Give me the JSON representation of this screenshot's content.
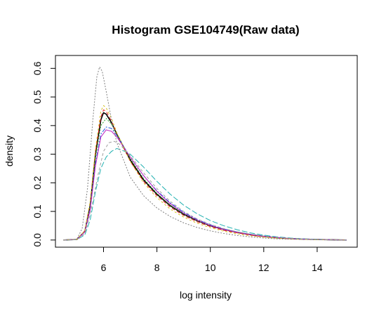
{
  "chart_data": {
    "type": "line",
    "title": "Histogram GSE104749(Raw data)",
    "xlabel": "log intensity",
    "ylabel": "density",
    "xlim": [
      4.2,
      15.5
    ],
    "ylim": [
      -0.025,
      0.645
    ],
    "x_ticks": [
      6,
      8,
      10,
      12,
      14
    ],
    "y_ticks": [
      0.0,
      0.1,
      0.2,
      0.3,
      0.4,
      0.5,
      0.6
    ],
    "x_tick_labels": [
      "6",
      "8",
      "10",
      "12",
      "14"
    ],
    "y_tick_labels": [
      "0.0",
      "0.1",
      "0.2",
      "0.3",
      "0.4",
      "0.5",
      "0.6"
    ],
    "grid": false,
    "legend": "none",
    "series": [
      {
        "color": "#000000",
        "dash": "solid",
        "x": [
          4.5,
          5.0,
          5.3,
          5.5,
          5.7,
          5.9,
          6.0,
          6.1,
          6.3,
          6.5,
          7.0,
          7.5,
          8.0,
          8.5,
          9.0,
          9.5,
          10.0,
          10.5,
          11.0,
          11.5,
          12.0,
          12.5,
          13.0,
          13.5,
          14.0,
          14.5,
          15.1
        ],
        "y": [
          0.0,
          0.002,
          0.03,
          0.12,
          0.3,
          0.42,
          0.445,
          0.44,
          0.41,
          0.37,
          0.28,
          0.21,
          0.16,
          0.12,
          0.09,
          0.068,
          0.05,
          0.037,
          0.027,
          0.019,
          0.013,
          0.008,
          0.005,
          0.003,
          0.002,
          0.001,
          0.0
        ]
      },
      {
        "color": "#e32020",
        "dash": "5,3",
        "x": [
          4.5,
          5.0,
          5.3,
          5.5,
          5.7,
          5.9,
          6.0,
          6.1,
          6.3,
          6.5,
          7.0,
          7.5,
          8.0,
          8.5,
          9.0,
          9.5,
          10.0,
          10.5,
          11.0,
          11.5,
          12.0,
          12.5,
          13.0,
          13.5,
          14.0,
          14.5,
          15.1
        ],
        "y": [
          0.0,
          0.002,
          0.032,
          0.13,
          0.31,
          0.43,
          0.455,
          0.45,
          0.415,
          0.37,
          0.275,
          0.205,
          0.155,
          0.115,
          0.086,
          0.064,
          0.047,
          0.034,
          0.025,
          0.017,
          0.011,
          0.007,
          0.004,
          0.003,
          0.002,
          0.001,
          0.0
        ]
      },
      {
        "color": "#22a022",
        "dash": "2,2",
        "x": [
          4.5,
          5.0,
          5.3,
          5.5,
          5.7,
          5.9,
          6.1,
          6.3,
          6.5,
          7.0,
          7.5,
          8.0,
          8.5,
          9.0,
          9.5,
          10.0,
          10.5,
          11.0,
          11.5,
          12.0,
          12.5,
          13.0,
          13.5,
          14.0,
          14.5,
          15.1
        ],
        "y": [
          0.0,
          0.002,
          0.03,
          0.12,
          0.29,
          0.4,
          0.425,
          0.405,
          0.37,
          0.285,
          0.215,
          0.163,
          0.122,
          0.091,
          0.068,
          0.05,
          0.037,
          0.027,
          0.019,
          0.013,
          0.008,
          0.005,
          0.003,
          0.002,
          0.001,
          0.0
        ]
      },
      {
        "color": "#2060e0",
        "dash": "6,2,2,2",
        "x": [
          4.5,
          5.0,
          5.3,
          5.5,
          5.7,
          5.9,
          6.1,
          6.3,
          6.5,
          7.0,
          7.5,
          8.0,
          8.5,
          9.0,
          9.5,
          10.0,
          10.5,
          11.0,
          11.5,
          12.0,
          12.5,
          13.0,
          13.5,
          14.0,
          14.5,
          15.1
        ],
        "y": [
          0.0,
          0.002,
          0.028,
          0.11,
          0.27,
          0.37,
          0.395,
          0.39,
          0.365,
          0.29,
          0.225,
          0.172,
          0.13,
          0.097,
          0.072,
          0.053,
          0.039,
          0.028,
          0.02,
          0.014,
          0.009,
          0.006,
          0.004,
          0.002,
          0.001,
          0.0
        ]
      },
      {
        "color": "#20b0b0",
        "dash": "8,3",
        "x": [
          4.5,
          5.0,
          5.3,
          5.5,
          5.7,
          5.9,
          6.1,
          6.3,
          6.5,
          6.8,
          7.0,
          7.5,
          8.0,
          8.5,
          9.0,
          9.5,
          10.0,
          10.5,
          11.0,
          11.5,
          12.0,
          12.5,
          13.0,
          13.5,
          14.0,
          14.5,
          15.1
        ],
        "y": [
          0.0,
          0.001,
          0.018,
          0.07,
          0.17,
          0.25,
          0.29,
          0.31,
          0.32,
          0.31,
          0.3,
          0.255,
          0.205,
          0.16,
          0.122,
          0.092,
          0.068,
          0.05,
          0.036,
          0.025,
          0.017,
          0.011,
          0.007,
          0.004,
          0.003,
          0.001,
          0.0
        ]
      },
      {
        "color": "#c020c0",
        "dash": "solid",
        "x": [
          4.5,
          5.0,
          5.3,
          5.5,
          5.7,
          5.9,
          6.1,
          6.3,
          6.5,
          7.0,
          7.5,
          8.0,
          8.5,
          9.0,
          9.5,
          10.0,
          10.5,
          11.0,
          11.5,
          12.0,
          12.5,
          13.0,
          13.5,
          14.0,
          14.5,
          15.1
        ],
        "y": [
          0.0,
          0.002,
          0.028,
          0.105,
          0.26,
          0.36,
          0.385,
          0.38,
          0.36,
          0.29,
          0.225,
          0.17,
          0.127,
          0.094,
          0.07,
          0.051,
          0.037,
          0.027,
          0.019,
          0.013,
          0.009,
          0.005,
          0.003,
          0.002,
          0.001,
          0.0
        ]
      },
      {
        "color": "#d4c020",
        "dash": "3,3",
        "x": [
          4.5,
          5.0,
          5.3,
          5.5,
          5.7,
          5.9,
          6.0,
          6.1,
          6.3,
          6.5,
          7.0,
          7.5,
          8.0,
          8.5,
          9.0,
          9.5,
          10.0,
          10.5,
          11.0,
          11.5,
          12.0,
          12.5,
          13.0,
          13.5,
          14.0,
          14.5,
          15.1
        ],
        "y": [
          0.0,
          0.002,
          0.033,
          0.135,
          0.32,
          0.45,
          0.47,
          0.462,
          0.425,
          0.375,
          0.275,
          0.2,
          0.148,
          0.108,
          0.08,
          0.059,
          0.043,
          0.031,
          0.022,
          0.015,
          0.01,
          0.006,
          0.004,
          0.002,
          0.001,
          0.001,
          0.0
        ]
      },
      {
        "color": "#808080",
        "dash": "2,2",
        "x": [
          4.5,
          5.0,
          5.2,
          5.4,
          5.6,
          5.75,
          5.85,
          5.95,
          6.1,
          6.3,
          6.5,
          7.0,
          7.5,
          8.0,
          8.5,
          9.0,
          9.5,
          10.0,
          10.5,
          11.0,
          11.5,
          12.0,
          12.5,
          13.0,
          13.5,
          14.0,
          14.5,
          15.1
        ],
        "y": [
          0.0,
          0.003,
          0.04,
          0.18,
          0.42,
          0.57,
          0.605,
          0.59,
          0.52,
          0.42,
          0.34,
          0.22,
          0.155,
          0.112,
          0.082,
          0.06,
          0.044,
          0.032,
          0.023,
          0.016,
          0.011,
          0.007,
          0.004,
          0.003,
          0.002,
          0.001,
          0.0,
          0.0
        ]
      },
      {
        "color": "#a0a0a0",
        "dash": "4,3",
        "x": [
          4.5,
          5.0,
          5.3,
          5.5,
          5.8,
          6.0,
          6.2,
          6.4,
          6.6,
          7.0,
          7.5,
          8.0,
          8.5,
          9.0,
          9.5,
          10.0,
          10.5,
          11.0,
          11.5,
          12.0,
          12.5,
          13.0,
          13.5,
          14.0,
          14.5,
          15.1
        ],
        "y": [
          0.0,
          0.001,
          0.022,
          0.09,
          0.23,
          0.31,
          0.34,
          0.345,
          0.335,
          0.295,
          0.235,
          0.18,
          0.135,
          0.1,
          0.074,
          0.055,
          0.04,
          0.029,
          0.021,
          0.014,
          0.009,
          0.006,
          0.004,
          0.002,
          0.001,
          0.0
        ]
      }
    ]
  }
}
